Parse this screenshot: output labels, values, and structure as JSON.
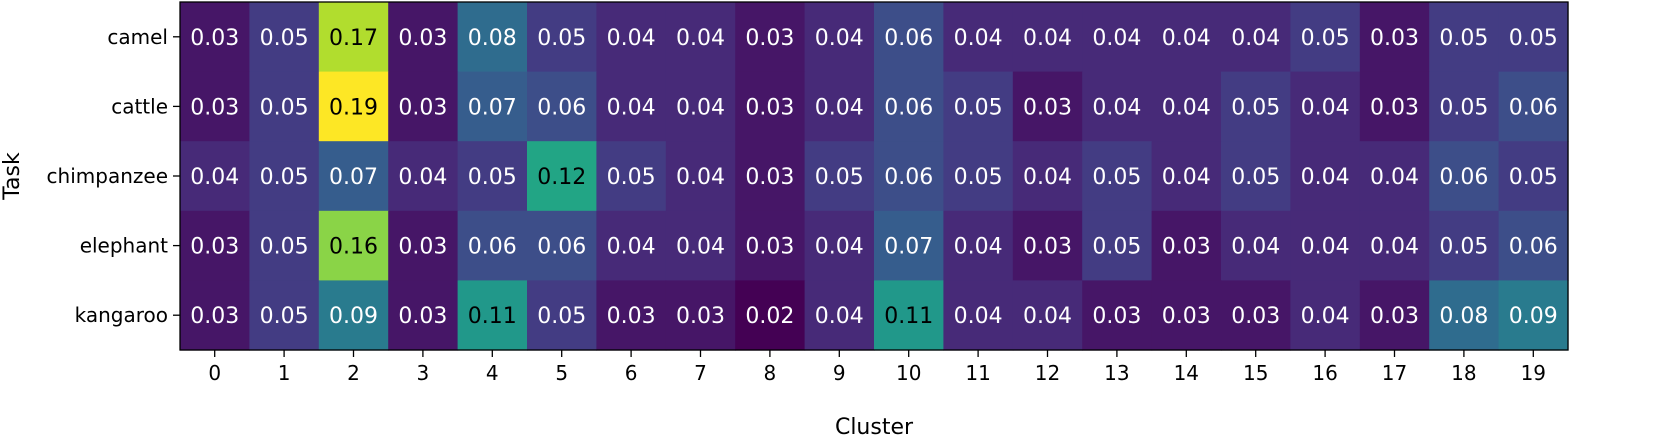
{
  "chart_data": {
    "type": "heatmap",
    "title": "",
    "xlabel": "Cluster",
    "ylabel": "Task",
    "x_categories": [
      "0",
      "1",
      "2",
      "3",
      "4",
      "5",
      "6",
      "7",
      "8",
      "9",
      "10",
      "11",
      "12",
      "13",
      "14",
      "15",
      "16",
      "17",
      "18",
      "19"
    ],
    "y_categories": [
      "camel",
      "cattle",
      "chimpanzee",
      "elephant",
      "kangaroo"
    ],
    "values": [
      [
        0.03,
        0.05,
        0.17,
        0.03,
        0.08,
        0.05,
        0.04,
        0.04,
        0.03,
        0.04,
        0.06,
        0.04,
        0.04,
        0.04,
        0.04,
        0.04,
        0.05,
        0.03,
        0.05,
        0.05
      ],
      [
        0.03,
        0.05,
        0.19,
        0.03,
        0.07,
        0.06,
        0.04,
        0.04,
        0.03,
        0.04,
        0.06,
        0.05,
        0.03,
        0.04,
        0.04,
        0.05,
        0.04,
        0.03,
        0.05,
        0.06
      ],
      [
        0.04,
        0.05,
        0.07,
        0.04,
        0.05,
        0.12,
        0.05,
        0.04,
        0.03,
        0.05,
        0.06,
        0.05,
        0.04,
        0.05,
        0.04,
        0.05,
        0.04,
        0.04,
        0.06,
        0.05
      ],
      [
        0.03,
        0.05,
        0.16,
        0.03,
        0.06,
        0.06,
        0.04,
        0.04,
        0.03,
        0.04,
        0.07,
        0.04,
        0.03,
        0.05,
        0.03,
        0.04,
        0.04,
        0.04,
        0.05,
        0.06
      ],
      [
        0.03,
        0.05,
        0.09,
        0.03,
        0.11,
        0.05,
        0.03,
        0.03,
        0.02,
        0.04,
        0.11,
        0.04,
        0.04,
        0.03,
        0.03,
        0.03,
        0.04,
        0.03,
        0.08,
        0.09
      ]
    ],
    "value_range": [
      0.02,
      0.19
    ],
    "colormap": "viridis",
    "grid": false,
    "legend": "none"
  }
}
